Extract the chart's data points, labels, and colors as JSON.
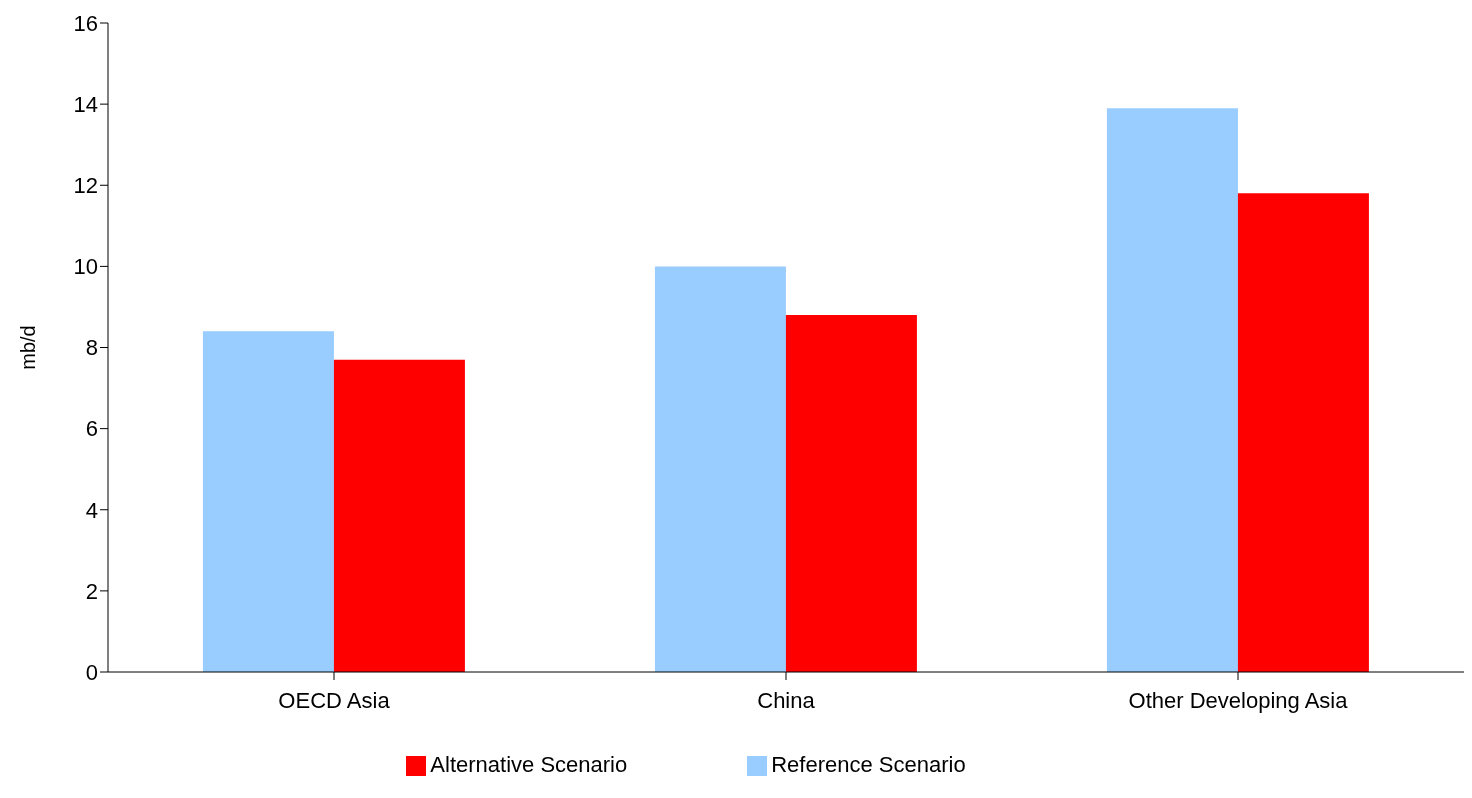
{
  "chart_data": {
    "type": "bar",
    "ylabel": "mb/d",
    "categories": [
      "OECD Asia",
      "China",
      "Other Developing Asia"
    ],
    "series": [
      {
        "name": "Reference Scenario",
        "color": "#99ccff",
        "values": [
          8.4,
          10.0,
          13.9
        ]
      },
      {
        "name": "Alternative Scenario",
        "color": "#ff0000",
        "values": [
          7.7,
          8.8,
          11.8
        ]
      }
    ],
    "ylim": [
      0,
      16
    ],
    "yticks": [
      0,
      2,
      4,
      6,
      8,
      10,
      12,
      14,
      16
    ],
    "grid": false,
    "legend": "bottom"
  }
}
